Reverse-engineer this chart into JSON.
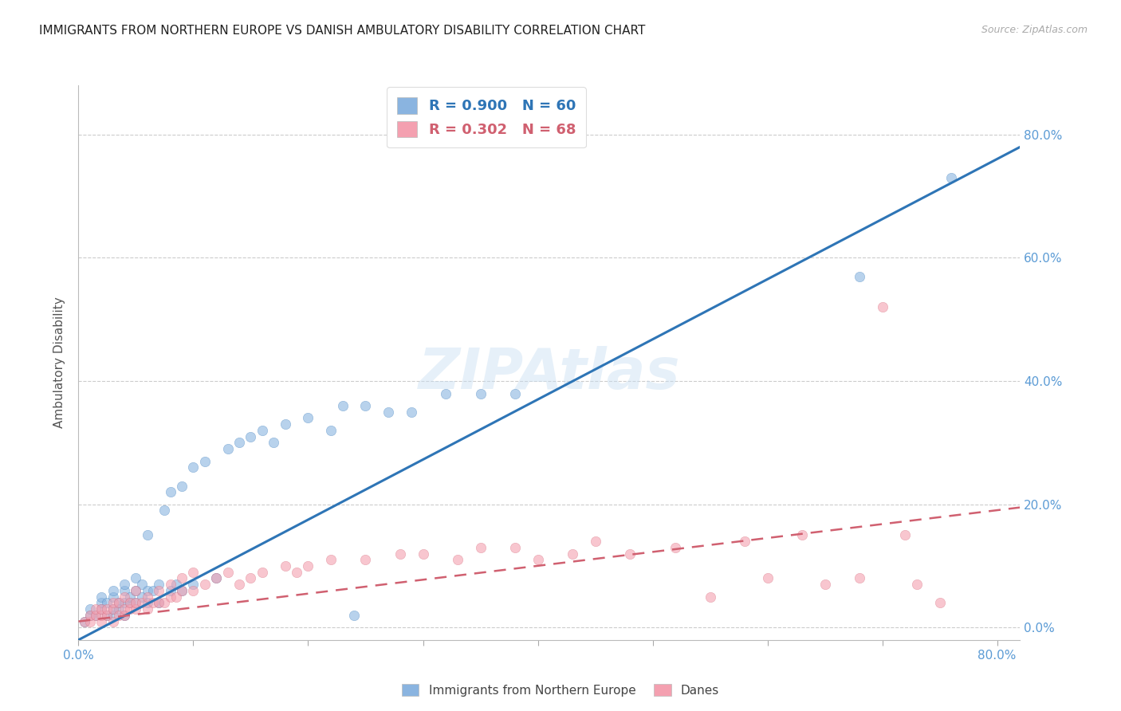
{
  "title": "IMMIGRANTS FROM NORTHERN EUROPE VS DANISH AMBULATORY DISABILITY CORRELATION CHART",
  "source": "Source: ZipAtlas.com",
  "ylabel": "Ambulatory Disability",
  "watermark": "ZIPAtlas",
  "blue_R": 0.9,
  "blue_N": 60,
  "pink_R": 0.302,
  "pink_N": 68,
  "xlim": [
    0.0,
    0.82
  ],
  "ylim": [
    -0.02,
    0.88
  ],
  "yticks": [
    0.0,
    0.2,
    0.4,
    0.6,
    0.8
  ],
  "xticks": [
    0.0,
    0.1,
    0.2,
    0.3,
    0.4,
    0.5,
    0.6,
    0.7,
    0.8
  ],
  "right_ytick_labels": [
    "0.0%",
    "20.0%",
    "40.0%",
    "60.0%",
    "80.0%"
  ],
  "blue_color": "#8ab4e0",
  "pink_color": "#f4a0b0",
  "blue_line_color": "#2e75b6",
  "pink_line_color": "#d06070",
  "legend_label_blue": "Immigrants from Northern Europe",
  "legend_label_pink": "Danes",
  "title_color": "#222222",
  "tick_color": "#5b9bd5",
  "blue_line_x0": 0.0,
  "blue_line_y0": -0.02,
  "blue_line_x1": 0.82,
  "blue_line_y1": 0.78,
  "pink_line_x0": 0.0,
  "pink_line_y0": 0.01,
  "pink_line_x1": 0.82,
  "pink_line_y1": 0.195,
  "blue_scatter_x": [
    0.005,
    0.01,
    0.01,
    0.015,
    0.02,
    0.02,
    0.02,
    0.025,
    0.025,
    0.03,
    0.03,
    0.03,
    0.03,
    0.035,
    0.035,
    0.04,
    0.04,
    0.04,
    0.04,
    0.045,
    0.045,
    0.05,
    0.05,
    0.05,
    0.055,
    0.055,
    0.06,
    0.06,
    0.06,
    0.065,
    0.07,
    0.07,
    0.075,
    0.08,
    0.08,
    0.085,
    0.09,
    0.09,
    0.1,
    0.1,
    0.11,
    0.12,
    0.13,
    0.14,
    0.15,
    0.16,
    0.17,
    0.18,
    0.2,
    0.22,
    0.23,
    0.24,
    0.25,
    0.27,
    0.29,
    0.32,
    0.35,
    0.38,
    0.68,
    0.76
  ],
  "blue_scatter_y": [
    0.01,
    0.02,
    0.03,
    0.02,
    0.03,
    0.04,
    0.05,
    0.02,
    0.04,
    0.02,
    0.03,
    0.05,
    0.06,
    0.03,
    0.04,
    0.02,
    0.04,
    0.06,
    0.07,
    0.04,
    0.05,
    0.04,
    0.06,
    0.08,
    0.05,
    0.07,
    0.04,
    0.06,
    0.15,
    0.06,
    0.04,
    0.07,
    0.19,
    0.06,
    0.22,
    0.07,
    0.06,
    0.23,
    0.07,
    0.26,
    0.27,
    0.08,
    0.29,
    0.3,
    0.31,
    0.32,
    0.3,
    0.33,
    0.34,
    0.32,
    0.36,
    0.02,
    0.36,
    0.35,
    0.35,
    0.38,
    0.38,
    0.38,
    0.57,
    0.73
  ],
  "pink_scatter_x": [
    0.005,
    0.01,
    0.01,
    0.015,
    0.015,
    0.02,
    0.02,
    0.02,
    0.025,
    0.025,
    0.03,
    0.03,
    0.03,
    0.035,
    0.035,
    0.04,
    0.04,
    0.04,
    0.045,
    0.045,
    0.05,
    0.05,
    0.05,
    0.055,
    0.06,
    0.06,
    0.065,
    0.07,
    0.07,
    0.075,
    0.08,
    0.08,
    0.085,
    0.09,
    0.09,
    0.1,
    0.1,
    0.11,
    0.12,
    0.13,
    0.14,
    0.15,
    0.16,
    0.18,
    0.19,
    0.2,
    0.22,
    0.25,
    0.28,
    0.3,
    0.33,
    0.35,
    0.38,
    0.4,
    0.43,
    0.45,
    0.48,
    0.52,
    0.55,
    0.58,
    0.6,
    0.63,
    0.65,
    0.68,
    0.7,
    0.72,
    0.73,
    0.75
  ],
  "pink_scatter_y": [
    0.01,
    0.01,
    0.02,
    0.02,
    0.03,
    0.01,
    0.02,
    0.03,
    0.02,
    0.03,
    0.01,
    0.03,
    0.04,
    0.02,
    0.04,
    0.02,
    0.03,
    0.05,
    0.03,
    0.04,
    0.03,
    0.04,
    0.06,
    0.04,
    0.03,
    0.05,
    0.04,
    0.04,
    0.06,
    0.04,
    0.05,
    0.07,
    0.05,
    0.06,
    0.08,
    0.06,
    0.09,
    0.07,
    0.08,
    0.09,
    0.07,
    0.08,
    0.09,
    0.1,
    0.09,
    0.1,
    0.11,
    0.11,
    0.12,
    0.12,
    0.11,
    0.13,
    0.13,
    0.11,
    0.12,
    0.14,
    0.12,
    0.13,
    0.05,
    0.14,
    0.08,
    0.15,
    0.07,
    0.08,
    0.52,
    0.15,
    0.07,
    0.04
  ]
}
